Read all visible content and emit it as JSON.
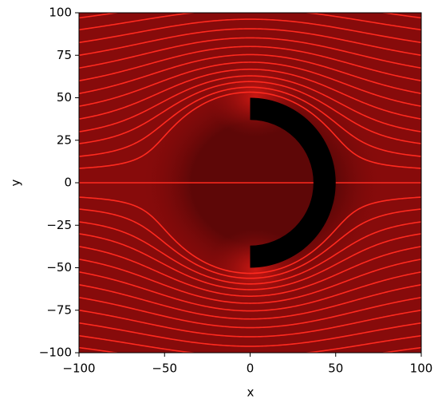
{
  "chart_data": {
    "type": "streamplot",
    "xlabel": "x",
    "ylabel": "y",
    "xlim": [
      -100,
      100
    ],
    "ylim": [
      -100,
      100
    ],
    "xticks": [
      {
        "value": -100,
        "label": "−100"
      },
      {
        "value": -50,
        "label": "−50"
      },
      0,
      50,
      100
    ],
    "yticks": [
      {
        "value": -100,
        "label": "−100"
      },
      {
        "value": -75,
        "label": "−75"
      },
      {
        "value": -50,
        "label": "−50"
      },
      {
        "value": -25,
        "label": "−25"
      },
      0,
      25,
      50,
      75,
      100
    ],
    "streamline_starts_y": [
      -97,
      -90,
      -82.5,
      -75,
      -67.5,
      -60,
      -52.5,
      -45,
      -37.5,
      -30,
      -23,
      -15.5,
      -8.5,
      0,
      8.5,
      15.5,
      23,
      30,
      37.5,
      45,
      52.5,
      60,
      67.5,
      75,
      82.5,
      90,
      97
    ],
    "streamline_color": "#ff2a1f",
    "obstacle": {
      "outer_radius": 50,
      "inner_radius": 37,
      "color": "#000000"
    }
  }
}
